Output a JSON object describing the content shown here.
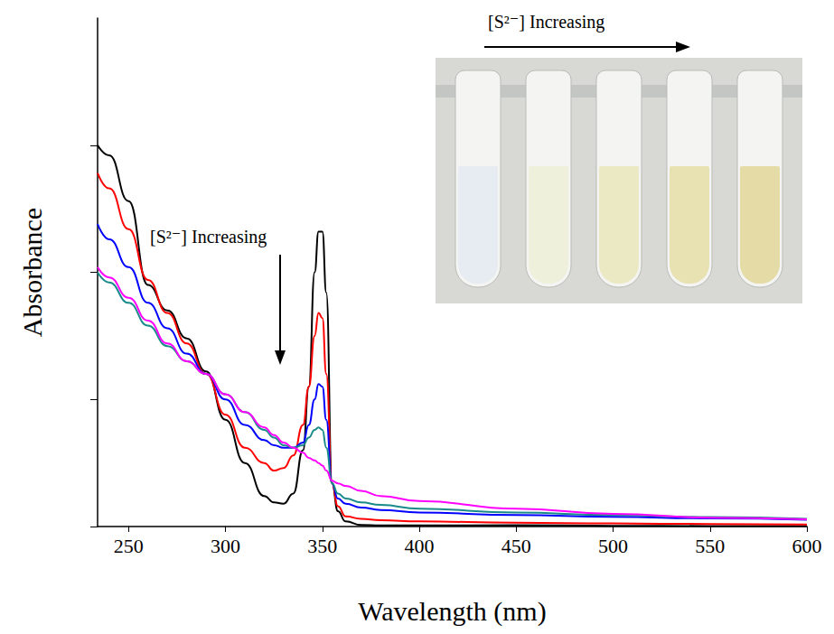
{
  "chart_data": {
    "type": "line",
    "x_label": "Wavelength (nm)",
    "y_label": "Absorbance",
    "x": [
      234,
      240,
      250,
      260,
      270,
      280,
      290,
      300,
      310,
      320,
      325,
      330,
      335,
      340,
      343,
      346,
      348,
      350,
      352,
      355,
      358,
      362,
      370,
      380,
      400,
      450,
      500,
      550,
      600
    ],
    "series": [
      {
        "color": "#000000",
        "values": [
          1.5,
          1.46,
          1.28,
          0.95,
          0.85,
          0.74,
          0.61,
          0.42,
          0.25,
          0.12,
          0.095,
          0.09,
          0.13,
          0.3,
          0.55,
          1.0,
          1.16,
          1.16,
          0.92,
          0.17,
          0.06,
          0.02,
          0.006,
          0.004,
          0.004,
          0.005,
          0.003,
          0.002,
          0.002
        ]
      },
      {
        "color": "#ff0000",
        "values": [
          1.39,
          1.33,
          1.17,
          0.97,
          0.84,
          0.72,
          0.6,
          0.44,
          0.31,
          0.25,
          0.22,
          0.23,
          0.28,
          0.4,
          0.55,
          0.75,
          0.84,
          0.82,
          0.6,
          0.17,
          0.08,
          0.04,
          0.03,
          0.025,
          0.02,
          0.015,
          0.012,
          0.01,
          0.008
        ]
      },
      {
        "color": "#0000ff",
        "values": [
          1.19,
          1.13,
          1.02,
          0.88,
          0.78,
          0.68,
          0.6,
          0.5,
          0.4,
          0.34,
          0.32,
          0.31,
          0.31,
          0.33,
          0.4,
          0.5,
          0.56,
          0.55,
          0.42,
          0.17,
          0.11,
          0.09,
          0.075,
          0.065,
          0.055,
          0.045,
          0.038,
          0.032,
          0.027
        ]
      },
      {
        "color": "#1a8a8a",
        "values": [
          1.0,
          0.96,
          0.88,
          0.79,
          0.71,
          0.65,
          0.6,
          0.52,
          0.45,
          0.38,
          0.35,
          0.32,
          0.31,
          0.32,
          0.35,
          0.38,
          0.39,
          0.38,
          0.31,
          0.17,
          0.13,
          0.11,
          0.095,
          0.085,
          0.07,
          0.055,
          0.045,
          0.037,
          0.03
        ]
      },
      {
        "color": "#ff00ff",
        "values": [
          1.02,
          0.98,
          0.9,
          0.81,
          0.72,
          0.65,
          0.6,
          0.52,
          0.45,
          0.39,
          0.36,
          0.33,
          0.31,
          0.29,
          0.27,
          0.26,
          0.25,
          0.24,
          0.22,
          0.18,
          0.17,
          0.16,
          0.14,
          0.12,
          0.1,
          0.07,
          0.05,
          0.035,
          0.028
        ]
      }
    ],
    "xlim": [
      234,
      600
    ],
    "xticks": [
      250,
      300,
      350,
      400,
      450,
      500,
      550,
      600
    ],
    "ylim": [
      0,
      2
    ],
    "yticks": [
      0,
      0.5,
      1,
      1.5
    ],
    "grid": false,
    "tick_labels": "x",
    "annotations": [
      "[S²⁻] Increasing",
      "[S²⁻] Increasing"
    ]
  }
}
